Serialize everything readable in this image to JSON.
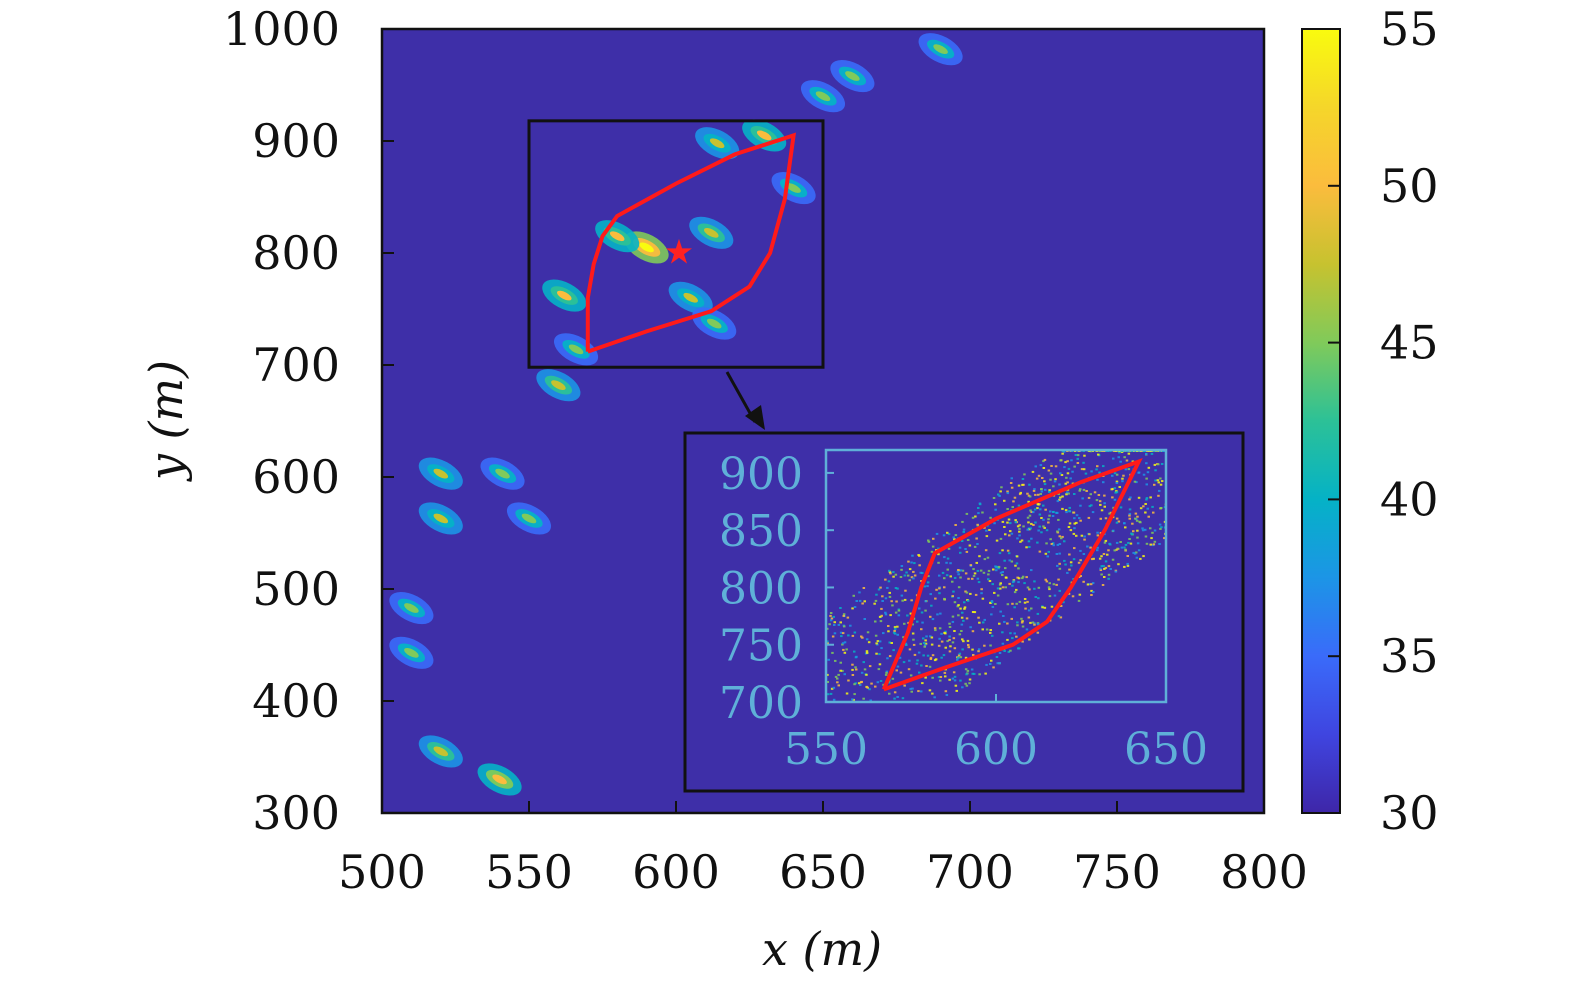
{
  "chart_data": {
    "type": "heatmap",
    "title": "",
    "xlabel": "x (m)",
    "ylabel": "y (m)",
    "xlim": [
      500,
      800
    ],
    "ylim": [
      300,
      1000
    ],
    "x_ticks": [
      "500",
      "550",
      "600",
      "650",
      "700",
      "750",
      "800"
    ],
    "y_ticks": [
      "300",
      "400",
      "500",
      "600",
      "700",
      "800",
      "900",
      "1000"
    ],
    "colorbar": {
      "range": [
        30,
        55
      ],
      "ticks": [
        "30",
        "35",
        "40",
        "45",
        "50",
        "55"
      ],
      "colormap": [
        "#3e26a8",
        "#3f45e0",
        "#3a6bfa",
        "#1c95e6",
        "#05b2c6",
        "#2cc197",
        "#80ca5a",
        "#c7c22f",
        "#fbbc3d",
        "#f5d62a",
        "#f9fb0e"
      ]
    },
    "background_value": 30,
    "hotspots": [
      {
        "x": 690,
        "y": 982,
        "value": 42
      },
      {
        "x": 660,
        "y": 958,
        "value": 42
      },
      {
        "x": 650,
        "y": 940,
        "value": 41
      },
      {
        "x": 630,
        "y": 905,
        "value": 45
      },
      {
        "x": 614,
        "y": 898,
        "value": 43
      },
      {
        "x": 640,
        "y": 858,
        "value": 42
      },
      {
        "x": 612,
        "y": 818,
        "value": 44
      },
      {
        "x": 590,
        "y": 805,
        "value": 52
      },
      {
        "x": 580,
        "y": 815,
        "value": 45
      },
      {
        "x": 605,
        "y": 760,
        "value": 43
      },
      {
        "x": 613,
        "y": 737,
        "value": 42
      },
      {
        "x": 562,
        "y": 762,
        "value": 45
      },
      {
        "x": 566,
        "y": 714,
        "value": 42
      },
      {
        "x": 560,
        "y": 682,
        "value": 44
      },
      {
        "x": 520,
        "y": 603,
        "value": 43
      },
      {
        "x": 541,
        "y": 603,
        "value": 42
      },
      {
        "x": 520,
        "y": 563,
        "value": 43
      },
      {
        "x": 550,
        "y": 563,
        "value": 42
      },
      {
        "x": 510,
        "y": 483,
        "value": 42
      },
      {
        "x": 510,
        "y": 443,
        "value": 42
      },
      {
        "x": 520,
        "y": 355,
        "value": 44
      },
      {
        "x": 540,
        "y": 330,
        "value": 46
      }
    ],
    "boundary_path": [
      [
        570,
        712
      ],
      [
        590,
        730
      ],
      [
        612,
        748
      ],
      [
        625,
        770
      ],
      [
        632,
        800
      ],
      [
        637,
        848
      ],
      [
        640,
        905
      ],
      [
        620,
        888
      ],
      [
        600,
        862
      ],
      [
        580,
        833
      ],
      [
        575,
        815
      ],
      [
        572,
        790
      ],
      [
        570,
        760
      ],
      [
        570,
        712
      ]
    ],
    "target_marker": {
      "x": 601,
      "y": 800,
      "symbol": "star",
      "color": "#ff2222"
    },
    "zoom_box": {
      "xlim": [
        550,
        650
      ],
      "ylim": [
        698,
        918
      ]
    },
    "inset": {
      "xlim": [
        550,
        650
      ],
      "ylim": [
        700,
        920
      ],
      "x_ticks": [
        "550",
        "600",
        "650"
      ],
      "y_ticks": [
        "700",
        "750",
        "800",
        "850",
        "900"
      ],
      "boundary_path": [
        [
          567,
          711
        ],
        [
          585,
          730
        ],
        [
          605,
          750
        ],
        [
          615,
          770
        ],
        [
          622,
          800
        ],
        [
          632,
          850
        ],
        [
          642,
          910
        ],
        [
          625,
          892
        ],
        [
          600,
          860
        ],
        [
          582,
          830
        ],
        [
          578,
          800
        ],
        [
          574,
          760
        ],
        [
          567,
          711
        ]
      ]
    },
    "boundary_color": "#ff1a1a",
    "background_color": "#3e2fa8"
  }
}
